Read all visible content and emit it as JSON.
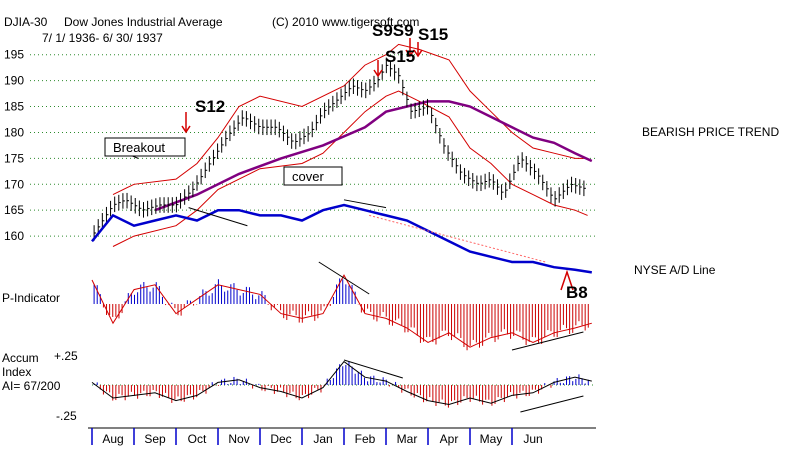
{
  "chart_data": {
    "type": "line",
    "title": "Dow Jones Industrial Average",
    "ticker": "DJIA-30",
    "date_range": "7/ 1/ 1936- 6/ 30/ 1937",
    "copyright": "(C) 2010 www.tigersoft.com",
    "trend_label": "BEARISH PRICE TREND",
    "ad_line_label": "NYSE A/D Line",
    "annotations": {
      "breakout": "Breakout",
      "cover": "cover",
      "s12": "S12",
      "s15a": "S15",
      "s9s9": "S9S9",
      "s15b": "S15",
      "b8": "B8"
    },
    "price_panel": {
      "ylim": [
        155,
        199
      ],
      "yticks": [
        160,
        165,
        170,
        175,
        180,
        185,
        190,
        195
      ],
      "ytick_labels": [
        "160",
        "165",
        "170",
        "175",
        "180",
        "185",
        "190",
        "195"
      ],
      "series": [
        {
          "name": "DJIA close",
          "x": [
            0,
            0.5,
            0.8,
            1.2,
            1.6,
            2.0,
            2.4,
            2.8,
            3.2,
            3.6,
            4.0,
            4.4,
            4.8,
            5.2,
            5.5,
            5.8,
            6.2,
            6.5,
            6.8,
            7.0,
            7.3,
            7.6,
            8.0,
            8.4,
            8.8,
            9.2,
            9.5,
            9.8,
            10.2,
            10.6,
            11.0,
            11.4,
            11.8
          ],
          "values": [
            160,
            166,
            167,
            165,
            166,
            166,
            169,
            174,
            179,
            183,
            181,
            181,
            178,
            180,
            184,
            186,
            189,
            188,
            190,
            193,
            191,
            184,
            185,
            177,
            172,
            170,
            171,
            168,
            175,
            172,
            167,
            170,
            169
          ]
        },
        {
          "name": "Upper band",
          "x": [
            0.5,
            1.0,
            2.0,
            2.5,
            3.0,
            3.5,
            4.0,
            5.0,
            6.0,
            6.5,
            7.0,
            7.3,
            7.8,
            8.5,
            9.0,
            9.5,
            10.0,
            10.5,
            11.0,
            11.5,
            11.8
          ],
          "values": [
            168,
            170,
            171,
            174,
            179,
            185,
            187,
            185,
            189,
            193,
            195,
            197,
            196,
            194,
            188,
            184,
            180,
            177,
            176,
            175,
            175
          ]
        },
        {
          "name": "Lower band",
          "x": [
            0.5,
            1.0,
            2.0,
            2.5,
            3.0,
            4.0,
            5.0,
            5.5,
            6.0,
            6.5,
            7.0,
            7.3,
            7.8,
            8.5,
            9.0,
            9.5,
            10.0,
            10.5,
            11.0,
            11.5,
            11.8
          ],
          "values": [
            158,
            160,
            162,
            165,
            169,
            173,
            174,
            176,
            180,
            184,
            187,
            188,
            186,
            183,
            177,
            174,
            170,
            168,
            166,
            165,
            164
          ]
        },
        {
          "name": "Moving average",
          "x": [
            1.5,
            2.5,
            3.5,
            4.5,
            5.5,
            6.5,
            7.0,
            7.5,
            8.0,
            8.5,
            9.0,
            9.5,
            10.0,
            10.5,
            11.0,
            11.5,
            11.9
          ],
          "values": [
            165,
            168,
            172,
            175,
            177.5,
            181,
            184,
            185,
            186,
            186,
            185,
            183,
            181,
            179,
            178,
            176,
            174.5
          ]
        },
        {
          "name": "NYSE A/D Line",
          "x": [
            0,
            0.5,
            1.0,
            1.5,
            2.0,
            2.5,
            3.0,
            3.5,
            4.0,
            4.5,
            5.0,
            5.5,
            6.0,
            6.5,
            7.0,
            7.5,
            8.0,
            8.5,
            9.0,
            9.5,
            10.0,
            10.5,
            11.0,
            11.5,
            11.9
          ],
          "values": [
            159,
            164,
            162,
            163,
            164,
            163,
            165,
            165,
            164,
            164,
            163,
            165,
            166,
            165,
            164,
            163,
            161,
            159,
            157,
            156,
            155,
            155,
            154,
            153.5,
            153
          ]
        }
      ]
    },
    "p_indicator_panel": {
      "label": "P-Indicator",
      "series": [
        {
          "name": "P-Indicator",
          "x": [
            0,
            0.5,
            1.0,
            1.5,
            2.0,
            2.5,
            3.0,
            3.5,
            4.0,
            4.5,
            5.0,
            5.5,
            6.0,
            6.5,
            7.0,
            7.5,
            8.0,
            8.5,
            9.0,
            9.5,
            10.0,
            10.5,
            11.0,
            11.5,
            11.9
          ],
          "values": [
            0.5,
            -0.4,
            0.3,
            0.4,
            -0.2,
            0.1,
            0.4,
            0.3,
            0.2,
            -0.2,
            -0.3,
            -0.2,
            0.6,
            -0.2,
            -0.3,
            -0.5,
            -0.8,
            -0.6,
            -0.9,
            -0.7,
            -0.6,
            -0.8,
            -0.6,
            -0.5,
            -0.4
          ]
        }
      ]
    },
    "accum_panel": {
      "label_lines": [
        "Accum",
        "Index",
        "AI= 67/200"
      ],
      "ytick_labels": [
        "+.25",
        "-.25"
      ],
      "series": [
        {
          "name": "Accumulation Index",
          "x": [
            0,
            0.5,
            1.0,
            1.5,
            2.0,
            2.5,
            3.0,
            3.5,
            4.0,
            4.5,
            5.0,
            5.5,
            6.0,
            6.5,
            7.0,
            7.5,
            8.0,
            8.5,
            9.0,
            9.5,
            10.0,
            10.5,
            11.0,
            11.5,
            11.9
          ],
          "values": [
            0.02,
            -0.1,
            -0.08,
            -0.06,
            -0.12,
            -0.08,
            0.02,
            0.04,
            -0.02,
            -0.05,
            -0.1,
            -0.02,
            0.18,
            0.06,
            0.03,
            -0.05,
            -0.12,
            -0.15,
            -0.1,
            -0.14,
            -0.08,
            -0.06,
            0.02,
            0.06,
            0.03
          ]
        }
      ]
    },
    "x_axis": {
      "months": [
        "Aug",
        "Sep",
        "Oct",
        "Nov",
        "Dec",
        "Jan",
        "Feb",
        "Mar",
        "Apr",
        "May",
        "Jun"
      ],
      "xlim": [
        0,
        12
      ]
    }
  }
}
